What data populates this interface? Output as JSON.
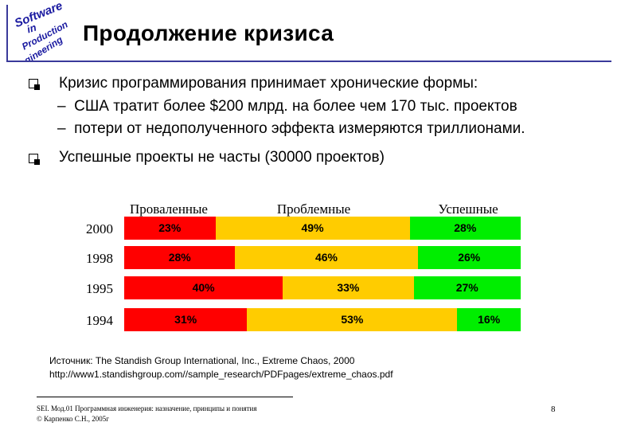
{
  "header": {
    "logo_words": [
      "Software",
      "in",
      "Production",
      "Engineering"
    ],
    "title": "Продолжение кризиса"
  },
  "bullets": [
    {
      "text": "Кризис программирования принимает хронические формы:",
      "sub": [
        "США тратит более $200 млрд. на более чем 170 тыс. проектов",
        "потери от недополученного эффекта измеряются триллионами."
      ]
    },
    {
      "text": "Успешные проекты не часты (30000 проектов)",
      "sub": []
    }
  ],
  "sub_marker": "–",
  "chart_data": {
    "type": "bar",
    "stacked": true,
    "orientation": "horizontal",
    "categories": [
      "2000",
      "1998",
      "1995",
      "1994"
    ],
    "series": [
      {
        "name": "Проваленные",
        "color": "#ff0000",
        "values": [
          23,
          28,
          40,
          31
        ]
      },
      {
        "name": "Проблемные",
        "color": "#ffcc00",
        "values": [
          49,
          46,
          33,
          53
        ]
      },
      {
        "name": "Успешные",
        "color": "#00ee00",
        "values": [
          28,
          26,
          27,
          16
        ]
      }
    ],
    "value_labels": [
      [
        "23%",
        "49%",
        "28%"
      ],
      [
        "28%",
        "46%",
        "26%"
      ],
      [
        "40%",
        "33%",
        "27%"
      ],
      [
        "31%",
        "53%",
        "16%"
      ]
    ]
  },
  "source": {
    "line1": "Источник: The Standish Group International, Inc., Extreme Chaos, 2000",
    "line2": "http://www1.standishgroup.com//sample_research/PDFpages/extreme_chaos.pdf"
  },
  "footer": {
    "line1": "SEI. Мод.01 Программная инженерия: назначение, принципы и понятия",
    "line2": "© Карпенко С.Н., 2005г",
    "page": "8"
  }
}
